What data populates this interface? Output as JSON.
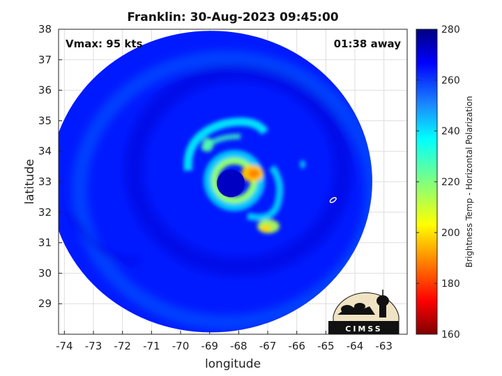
{
  "chart_data": {
    "type": "heatmap",
    "title": "Franklin: 30-Aug-2023 09:45:00",
    "xlabel": "longitude",
    "ylabel": "latitude",
    "xlim": [
      -74.2,
      -62.2
    ],
    "ylim": [
      28,
      38
    ],
    "x_ticks": [
      "-74",
      "-73",
      "-72",
      "-71",
      "-70",
      "-69",
      "-68",
      "-67",
      "-66",
      "-65",
      "-64",
      "-63"
    ],
    "y_ticks": [
      "38",
      "37",
      "36",
      "35",
      "34",
      "33",
      "32",
      "31",
      "30",
      "29"
    ],
    "grid": true,
    "annotations": {
      "vmax": "Vmax: 95 kts",
      "time_away": "01:38 away"
    },
    "colorbar": {
      "label": "Brightness Temp - Horizontal Polarization",
      "range": [
        160,
        280
      ],
      "ticks": [
        "280",
        "260",
        "240",
        "220",
        "200",
        "180",
        "160"
      ],
      "colormap": "jet"
    },
    "storm_center": {
      "lon": -68.2,
      "lat": 32.95
    },
    "swath_center": {
      "lon": -68.95,
      "lat": 33.05
    },
    "field_summary": {
      "background_temp": 262,
      "eye_temp": 272,
      "eyewall_min_temp": 198
    }
  },
  "logo": {
    "text": "CIMSS",
    "icon": "cimss-logo-icon"
  },
  "colors": {
    "background_blue": "#1a4af0",
    "eye_blue": "#0a1e8c",
    "eyewall_orange": "#f08a12"
  }
}
